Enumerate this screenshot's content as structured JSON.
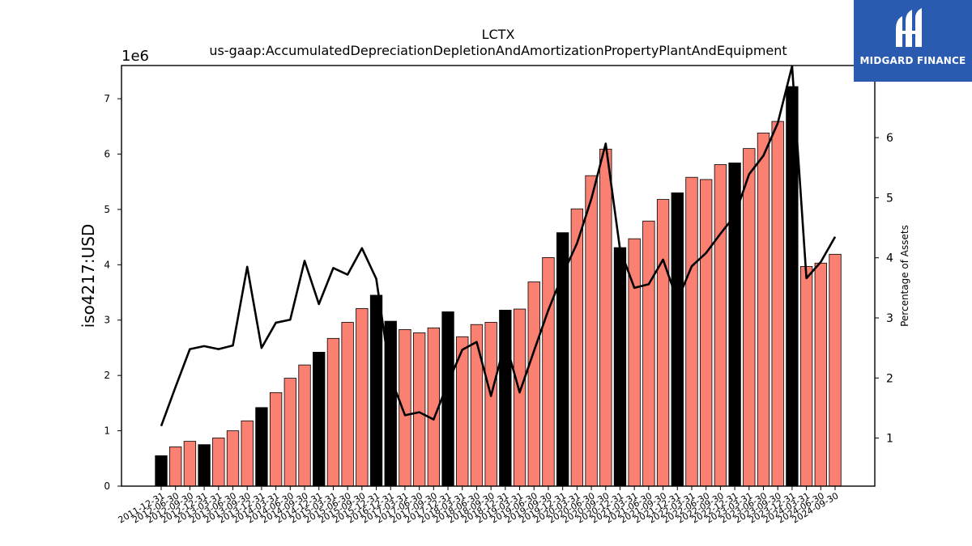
{
  "chart_data": {
    "type": "bar",
    "title": "LCTX",
    "subtitle": "us-gaap:AccumulatedDepreciationDepletionAndAmortizationPropertyPlantAndEquipment",
    "ylabel": "iso4217:USD",
    "y2label": "Percentage of Assets",
    "offset_label": "1e6",
    "ylim": [
      0,
      7600000
    ],
    "y2lim": [
      0.2,
      7.2
    ],
    "yticks": [
      0,
      1000000,
      2000000,
      3000000,
      4000000,
      5000000,
      6000000,
      7000000
    ],
    "ytick_labels": [
      "0",
      "1",
      "2",
      "3",
      "4",
      "5",
      "6",
      "7"
    ],
    "y2ticks": [
      1,
      2,
      3,
      4,
      5,
      6
    ],
    "y2tick_labels": [
      "1",
      "2",
      "3",
      "4",
      "5",
      "6"
    ],
    "grid": false,
    "categories": [
      "2011-12-31",
      "2012-06-30",
      "2012-09-30",
      "2012-12-31",
      "2013-03-31",
      "2013-06-30",
      "2013-09-30",
      "2013-12-31",
      "2014-03-31",
      "2014-06-30",
      "2014-09-30",
      "2014-12-31",
      "2015-03-31",
      "2015-06-30",
      "2015-09-30",
      "2015-12-31",
      "2016-12-31",
      "2017-03-31",
      "2017-06-30",
      "2017-09-30",
      "2017-12-31",
      "2018-03-31",
      "2018-06-30",
      "2018-09-30",
      "2018-12-31",
      "2019-03-31",
      "2019-06-30",
      "2019-09-30",
      "2019-12-31",
      "2020-03-31",
      "2020-06-30",
      "2020-09-30",
      "2020-12-31",
      "2021-03-31",
      "2021-06-30",
      "2021-09-30",
      "2021-12-31",
      "2022-03-31",
      "2022-06-30",
      "2022-09-30",
      "2022-12-31",
      "2023-03-31",
      "2023-06-30",
      "2023-09-30",
      "2023-12-31",
      "2024-03-31",
      "2024-06-30",
      "2024-09-30"
    ],
    "series": [
      {
        "values": [
          550000,
          710000,
          810000,
          750000,
          870000,
          1000000,
          1180000,
          1420000,
          1690000,
          1950000,
          2190000,
          2420000,
          2670000,
          2960000,
          3210000,
          3450000,
          2980000,
          2830000,
          2770000,
          2860000,
          3150000,
          2700000,
          2920000,
          2960000,
          3180000,
          3200000,
          3690000,
          4130000,
          4580000,
          5010000,
          5610000,
          6090000,
          4310000,
          4470000,
          4790000,
          5180000,
          5300000,
          5580000,
          5540000,
          5810000,
          5840000,
          6100000,
          6380000,
          6590000,
          7220000,
          3970000,
          4030000,
          4190000
        ],
        "bar_colors": [
          "#000000",
          "#fa8072",
          "#fa8072",
          "#000000",
          "#fa8072",
          "#fa8072",
          "#fa8072",
          "#000000",
          "#fa8072",
          "#fa8072",
          "#fa8072",
          "#000000",
          "#fa8072",
          "#fa8072",
          "#fa8072",
          "#000000",
          "#000000",
          "#fa8072",
          "#fa8072",
          "#fa8072",
          "#000000",
          "#fa8072",
          "#fa8072",
          "#fa8072",
          "#000000",
          "#fa8072",
          "#fa8072",
          "#fa8072",
          "#000000",
          "#fa8072",
          "#fa8072",
          "#fa8072",
          "#000000",
          "#fa8072",
          "#fa8072",
          "#fa8072",
          "#000000",
          "#fa8072",
          "#fa8072",
          "#fa8072",
          "#000000",
          "#fa8072",
          "#fa8072",
          "#fa8072",
          "#000000",
          "#fa8072",
          "#fa8072",
          "#fa8072"
        ]
      },
      {
        "axis": "right",
        "type": "line",
        "color": "#000000",
        "values": [
          1.2,
          1.85,
          2.48,
          2.53,
          2.48,
          2.54,
          3.85,
          2.5,
          2.92,
          2.97,
          3.95,
          3.23,
          3.83,
          3.72,
          4.16,
          3.65,
          2.01,
          1.38,
          1.43,
          1.31,
          1.92,
          2.47,
          2.6,
          1.7,
          2.61,
          1.76,
          2.45,
          3.13,
          3.72,
          4.24,
          4.98,
          5.9,
          4.14,
          3.5,
          3.56,
          3.97,
          3.29,
          3.86,
          4.08,
          4.4,
          4.7,
          5.39,
          5.7,
          6.24,
          7.19,
          3.66,
          3.93,
          4.35
        ]
      }
    ]
  },
  "logo": {
    "text": "MIDGARD FINANCE",
    "background": "#2a5bb0",
    "icon": "midgard-finance-logo-icon"
  }
}
